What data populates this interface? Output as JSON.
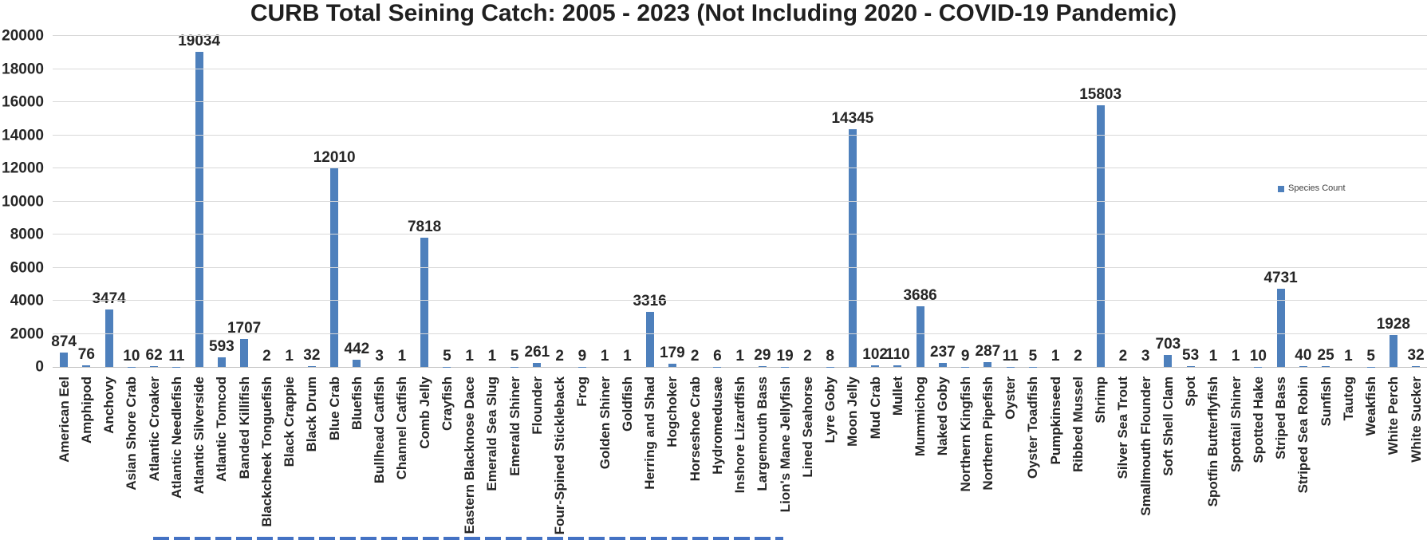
{
  "chart_data": {
    "type": "bar",
    "title": "CURB Total Seining Catch: 2005 - 2023 (Not Including 2020 - COVID-19 Pandemic)",
    "series": [
      {
        "name": "Species Count",
        "values": [
          874,
          76,
          3474,
          10,
          62,
          11,
          19034,
          593,
          1707,
          2,
          1,
          32,
          12010,
          442,
          3,
          1,
          7818,
          5,
          1,
          1,
          5,
          261,
          2,
          9,
          1,
          1,
          3316,
          179,
          2,
          6,
          1,
          29,
          19,
          2,
          8,
          14345,
          102,
          110,
          3686,
          237,
          9,
          287,
          11,
          5,
          1,
          2,
          15803,
          2,
          3,
          703,
          53,
          1,
          1,
          10,
          4731,
          40,
          25,
          1,
          5,
          1928,
          32
        ]
      }
    ],
    "categories": [
      "American Eel",
      "Amphipod",
      "Anchovy",
      "Asian Shore Crab",
      "Atlantic Croaker",
      "Atlantic Needlefish",
      "Atlantic Silverside",
      "Atlantic Tomcod",
      "Banded Killifish",
      "Blackcheek Tonguefish",
      "Black Crappie",
      "Black Drum",
      "Blue Crab",
      "Bluefish",
      "Bullhead Catfish",
      "Channel Catfish",
      "Comb Jelly",
      "Crayfish",
      "Eastern Blacknose Dace",
      "Emerald Sea Slug",
      "Emerald Shiner",
      "Flounder",
      "Four-Spined Stickleback",
      "Frog",
      "Golden Shiner",
      "Goldfish",
      "Herring and Shad",
      "Hogchoker",
      "Horseshoe Crab",
      "Hydromedusae",
      "Inshore Lizardfish",
      "Largemouth Bass",
      "Lion's Mane Jellyfish",
      "Lined Seahorse",
      "Lyre Goby",
      "Moon Jelly",
      "Mud Crab",
      "Mullet",
      "Mummichog",
      "Naked Goby",
      "Northern Kingfish",
      "Northern Pipefish",
      "Oyster",
      "Oyster Toadfish",
      "Pumpkinseed",
      "Ribbed Mussel",
      "Shrimp",
      "Silver Sea Trout",
      "Smallmouth Flounder",
      "Soft Shell Clam",
      "Spot",
      "Spotfin Butterflyfish",
      "Spottail Shiner",
      "Spotted Hake",
      "Striped Bass",
      "Striped Sea Robin",
      "Sunfish",
      "Tautog",
      "Weakfish",
      "White Perch",
      "White Sucker"
    ],
    "xlabel": "",
    "ylabel": "",
    "ylim": [
      0,
      20000
    ],
    "yticks": [
      0,
      2000,
      4000,
      6000,
      8000,
      10000,
      12000,
      14000,
      16000,
      18000,
      20000
    ],
    "grid": true,
    "legend_position": "right",
    "data_labels": true,
    "colors": {
      "bar": "#4e80bc",
      "text": "#262626",
      "gridline": "#d9d9d9",
      "axis_line": "#bfbfbf",
      "bottom_strip": "#4472c4"
    }
  }
}
